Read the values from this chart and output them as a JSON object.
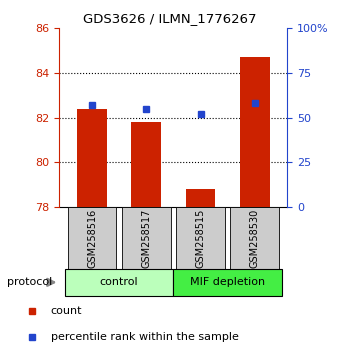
{
  "title": "GDS3626 / ILMN_1776267",
  "samples": [
    "GSM258516",
    "GSM258517",
    "GSM258515",
    "GSM258530"
  ],
  "bar_values": [
    82.4,
    81.8,
    78.8,
    84.7
  ],
  "percentile_values": [
    57,
    55,
    52,
    58
  ],
  "bar_color": "#cc2200",
  "dot_color": "#2244cc",
  "ylim_left": [
    78,
    86
  ],
  "ylim_right": [
    0,
    100
  ],
  "yticks_left": [
    78,
    80,
    82,
    84,
    86
  ],
  "yticks_right": [
    0,
    25,
    50,
    75,
    100
  ],
  "ytick_labels_right": [
    "0",
    "25",
    "50",
    "75",
    "100%"
  ],
  "groups": [
    {
      "label": "control",
      "indices": [
        0,
        1
      ],
      "color": "#bbffbb"
    },
    {
      "label": "MIF depletion",
      "indices": [
        2,
        3
      ],
      "color": "#44ee44"
    }
  ],
  "legend_count_label": "count",
  "legend_pct_label": "percentile rank within the sample",
  "protocol_label": "protocol",
  "bar_width": 0.55,
  "figsize": [
    3.4,
    3.54
  ],
  "dpi": 100
}
